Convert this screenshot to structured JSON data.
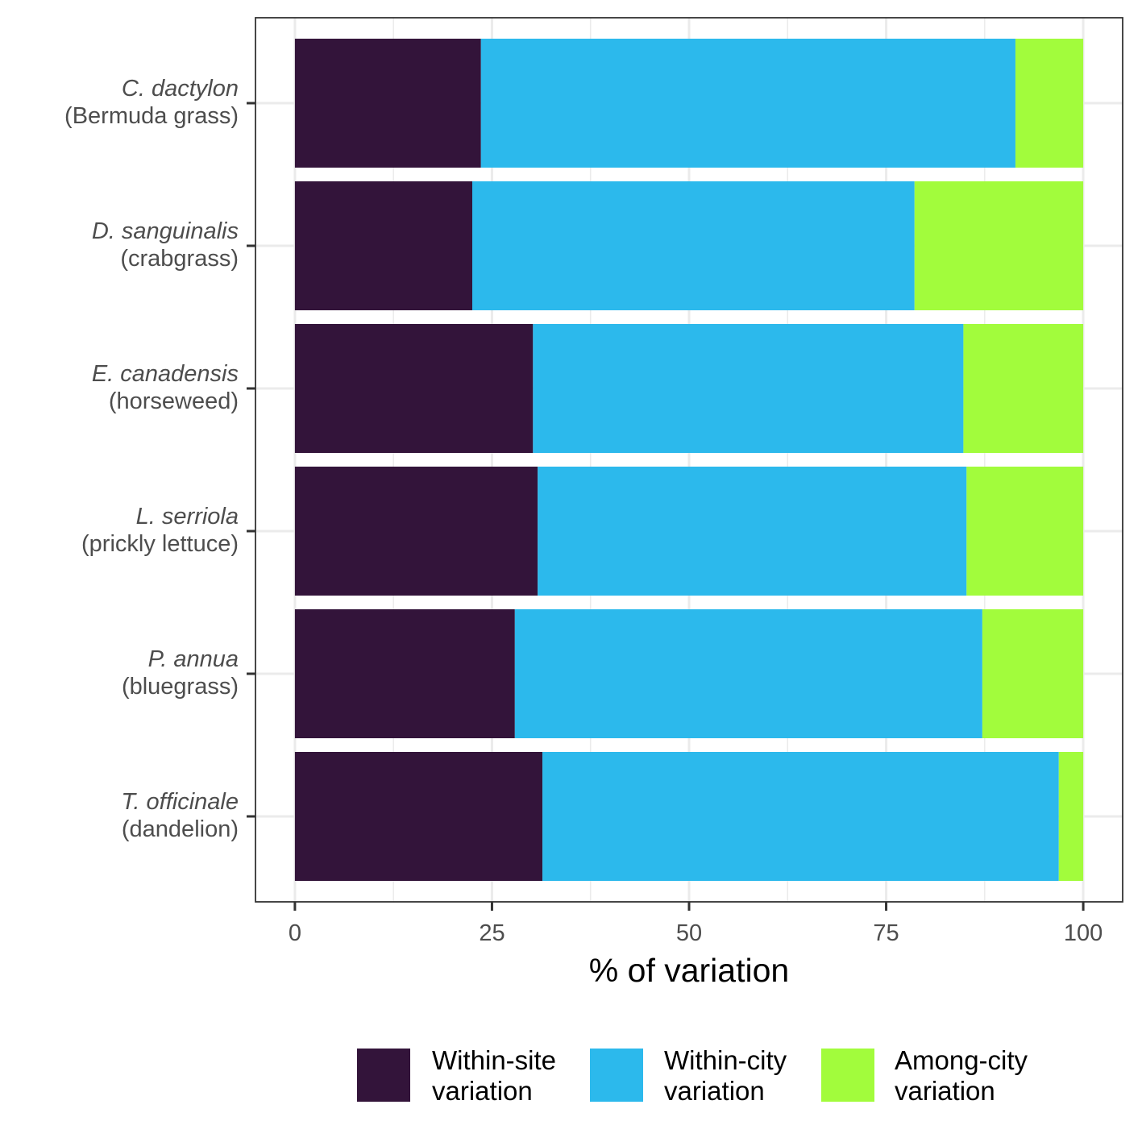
{
  "chart_data": {
    "type": "bar",
    "orientation": "horizontal",
    "stacked": true,
    "categories": [
      {
        "species": "C. dactylon",
        "common": "(Bermuda grass)"
      },
      {
        "species": "D. sanguinalis",
        "common": "(crabgrass)"
      },
      {
        "species": "E. canadensis",
        "common": "(horseweed)"
      },
      {
        "species": "L. serriola",
        "common": "(prickly lettuce)"
      },
      {
        "species": "P. annua",
        "common": "(bluegrass)"
      },
      {
        "species": "T. officinale",
        "common": "(dandelion)"
      }
    ],
    "series": [
      {
        "name": "Within-site variation",
        "legend_lines": [
          "Within-site",
          "variation"
        ],
        "color": "#33143A",
        "values": [
          23.6,
          22.5,
          30.2,
          30.8,
          27.9,
          31.4
        ]
      },
      {
        "name": "Within-city variation",
        "legend_lines": [
          "Within-city",
          "variation"
        ],
        "color": "#2CB9EC",
        "values": [
          67.8,
          56.1,
          54.6,
          54.4,
          59.3,
          65.5
        ]
      },
      {
        "name": "Among-city variation",
        "legend_lines": [
          "Among-city",
          "variation"
        ],
        "color": "#A2FC3C",
        "values": [
          8.6,
          21.4,
          15.2,
          14.8,
          12.8,
          3.1
        ]
      }
    ],
    "xlabel": "% of variation",
    "ylabel": "",
    "xlim": [
      -5,
      105
    ],
    "x_ticks": [
      0,
      25,
      50,
      75,
      100
    ],
    "x_tick_labels": [
      "0",
      "25",
      "50",
      "75",
      "100"
    ],
    "grid": true,
    "legend_position": "bottom"
  }
}
